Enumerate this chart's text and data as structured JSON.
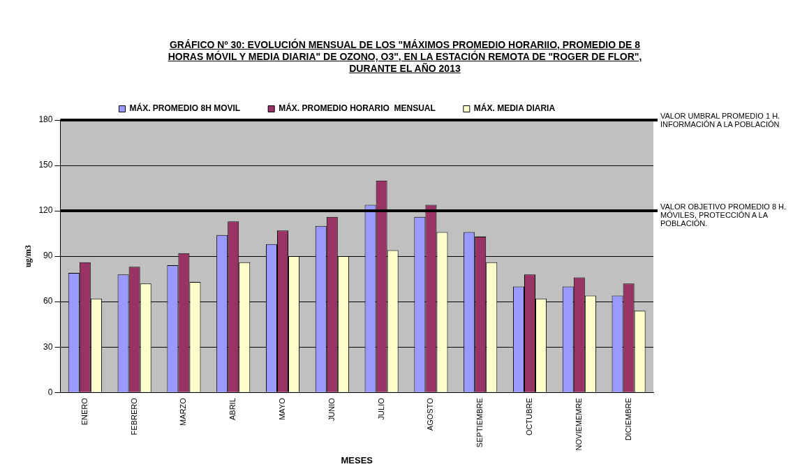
{
  "chart_data": {
    "type": "bar",
    "title": "GRÁFICO Nº 30: EVOLUCIÓN MENSUAL DE LOS \"MÁXIMOS PROMEDIO HORARIIO, PROMEDIO DE 8 HORAS MÓVIL Y MEDIA DIARIA\" DE OZONO, O3\", EN LA ESTACIÓN REMOTA DE \"ROGER DE FLOR\", DURANTE EL AÑO 2013",
    "xlabel": "MESES",
    "ylabel": "ug/m3",
    "categories": [
      "ENERO",
      "FEBRERO",
      "MARZO",
      "ABRIL",
      "MAYO",
      "JUNIO",
      "JULIO",
      "AGOSTO",
      "SEPTIEMBRE",
      "OCTUBRE",
      "NOVIEMEMRE",
      "DICIEMBRE"
    ],
    "series": [
      {
        "name": "MÁX. PROMEDIO 8H MOVIL",
        "color": "#9999ff",
        "values": [
          79,
          78,
          84,
          104,
          98,
          110,
          124,
          116,
          106,
          70,
          70,
          64
        ]
      },
      {
        "name": "MÁX. PROMEDIO HORARIO  MENSUAL",
        "color": "#993366",
        "values": [
          86,
          83,
          92,
          113,
          107,
          116,
          140,
          124,
          103,
          78,
          76,
          72
        ]
      },
      {
        "name": "MÁX. MEDIA DIARIA",
        "color": "#ffffcc",
        "values": [
          62,
          72,
          73,
          86,
          90,
          90,
          94,
          106,
          86,
          62,
          64,
          54
        ]
      }
    ],
    "ylim": [
      0,
      180
    ],
    "yticks": [
      0,
      30,
      60,
      90,
      120,
      150,
      180
    ],
    "grid": "y",
    "legend": "top",
    "ref_lines": [
      {
        "axis": "y",
        "value": 180,
        "label": "VALOR UMBRAL PROMEDIO 1 H. INFORMACIÓN A LA POBLACIÓN",
        "color": "#000000"
      },
      {
        "axis": "y",
        "value": 120,
        "label": "VALOR OBJETIVO PROMEDIO 8 H. MÓVILES, PROTECCIÓN A LA POBLACIÓN.",
        "color": "#000000"
      }
    ]
  }
}
